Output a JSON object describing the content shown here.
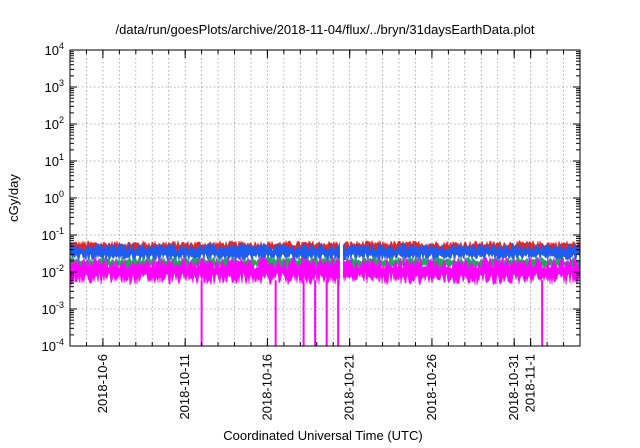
{
  "chart_data": {
    "type": "line",
    "title": "/data/run/goesPlots/archive/2018-11-04/flux/../bryn/31daysEarthData.plot",
    "xlabel": "Coordinated Universal Time (UTC)",
    "ylabel": "cGy/day",
    "y_scale": "log",
    "ylim": [
      0.0001,
      10000
    ],
    "xlim": [
      "2018-10-04",
      "2018-11-04"
    ],
    "grid": true,
    "legend": "none",
    "x_ticks": [
      "2018-10-6",
      "2018-10-11",
      "2018-10-16",
      "2018-10-21",
      "2018-10-26",
      "2018-10-31",
      "2018-11-1"
    ],
    "y_ticks": [
      {
        "base": "10",
        "exp": "-4",
        "value": 0.0001
      },
      {
        "base": "10",
        "exp": "-3",
        "value": 0.001
      },
      {
        "base": "10",
        "exp": "-2",
        "value": 0.01
      },
      {
        "base": "10",
        "exp": "-1",
        "value": 0.1
      },
      {
        "base": "10",
        "exp": "0",
        "value": 1
      },
      {
        "base": "10",
        "exp": "1",
        "value": 10
      },
      {
        "base": "10",
        "exp": "2",
        "value": 100
      },
      {
        "base": "10",
        "exp": "3",
        "value": 1000
      },
      {
        "base": "10",
        "exp": "4",
        "value": 10000
      }
    ],
    "series": [
      {
        "color": "#e8251f",
        "band_low": 0.03,
        "band_high": 0.07
      },
      {
        "color": "#1f5cf0",
        "band_low": 0.02,
        "band_high": 0.06
      },
      {
        "color": "#1fa85a",
        "band_low": 0.012,
        "band_high": 0.025
      },
      {
        "color": "#ff00ff",
        "band_low": 0.0045,
        "band_high": 0.025
      }
    ],
    "dropouts": [
      {
        "date": "2018-10-12",
        "min_value": 0.0001
      },
      {
        "date": "2018-10-16.5",
        "min_value": 0.0001
      },
      {
        "date": "2018-10-18.2",
        "min_value": 0.0001
      },
      {
        "date": "2018-10-18.9",
        "min_value": 0.0001
      },
      {
        "date": "2018-10-19.6",
        "min_value": 0.0001
      },
      {
        "date": "2018-10-20.3",
        "min_value": 0.0001
      },
      {
        "date": "2018-11-1.7",
        "min_value": 0.0001
      }
    ],
    "gap": {
      "date": "2018-10-20.5"
    }
  }
}
